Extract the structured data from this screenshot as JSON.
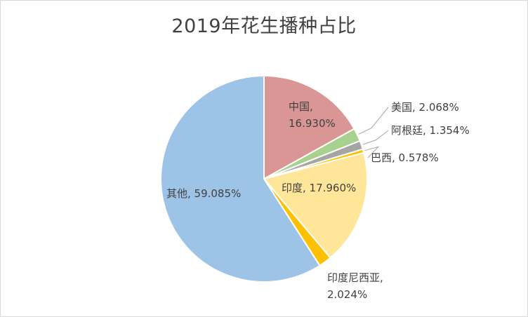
{
  "title": "2019年花生播种占比",
  "chart_data": {
    "type": "pie",
    "title": "2019年花生播种占比",
    "legend": "none",
    "slices": [
      {
        "name": "中国",
        "value": 16.93,
        "label_lines": [
          "中国,",
          "16.930%"
        ],
        "color": "#d99694"
      },
      {
        "name": "美国",
        "value": 2.068,
        "label_lines": [
          "美国, 2.068%"
        ],
        "color": "#a9d18e"
      },
      {
        "name": "阿根廷",
        "value": 1.354,
        "label_lines": [
          "阿根廷, 1.354%"
        ],
        "color": "#a5a5a5"
      },
      {
        "name": "巴西",
        "value": 0.578,
        "label_lines": [
          "巴西, 0.578%"
        ],
        "color": "#ffc000"
      },
      {
        "name": "印度",
        "value": 17.96,
        "label_lines": [
          "印度, 17.960%"
        ],
        "color": "#ffe699"
      },
      {
        "name": "印度尼西亚",
        "value": 2.024,
        "label_lines": [
          "印度尼西亚,",
          "2.024%"
        ],
        "color": "#ffc000"
      },
      {
        "name": "其他",
        "value": 59.085,
        "label_lines": [
          "其他, 59.085%"
        ],
        "color": "#9dc3e6"
      }
    ]
  }
}
